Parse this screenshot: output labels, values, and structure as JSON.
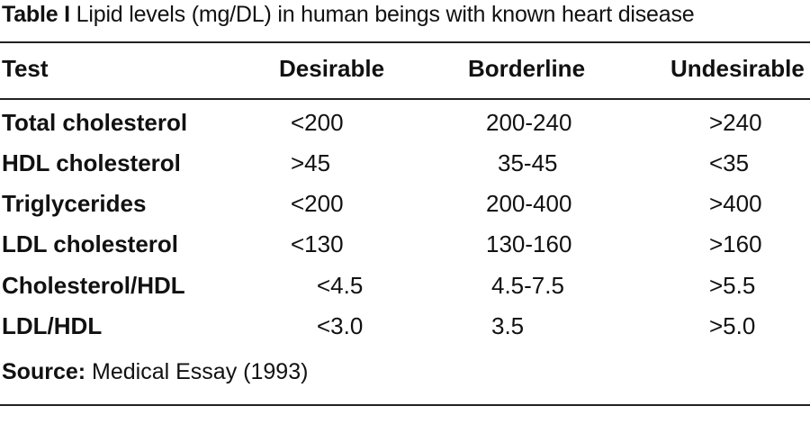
{
  "caption": {
    "label": "Table I",
    "text": " Lipid levels (mg/DL) in human beings with known heart disease"
  },
  "table": {
    "columns": [
      "Test",
      "Desirable",
      "Borderline",
      "Undesirable"
    ],
    "rows": [
      {
        "test": "Total cholesterol",
        "desirable": "<200",
        "borderline": "200-240",
        "undesirable": ">240"
      },
      {
        "test": "HDL cholesterol",
        "desirable": ">45",
        "borderline": "35-45",
        "undesirable": "<35"
      },
      {
        "test": "Triglycerides",
        "desirable": "<200",
        "borderline": "200-400",
        "undesirable": ">400"
      },
      {
        "test": "LDL cholesterol",
        "desirable": "<130",
        "borderline": "130-160",
        "undesirable": ">160"
      },
      {
        "test": "Cholesterol/HDL",
        "desirable": "<4.5",
        "borderline": "4.5-7.5",
        "undesirable": ">5.5"
      },
      {
        "test": "LDL/HDL",
        "desirable": "<3.0",
        "borderline": "3.5",
        "undesirable": ">5.0"
      }
    ]
  },
  "source": {
    "label": "Source:",
    "text": " Medical Essay (1993)"
  }
}
